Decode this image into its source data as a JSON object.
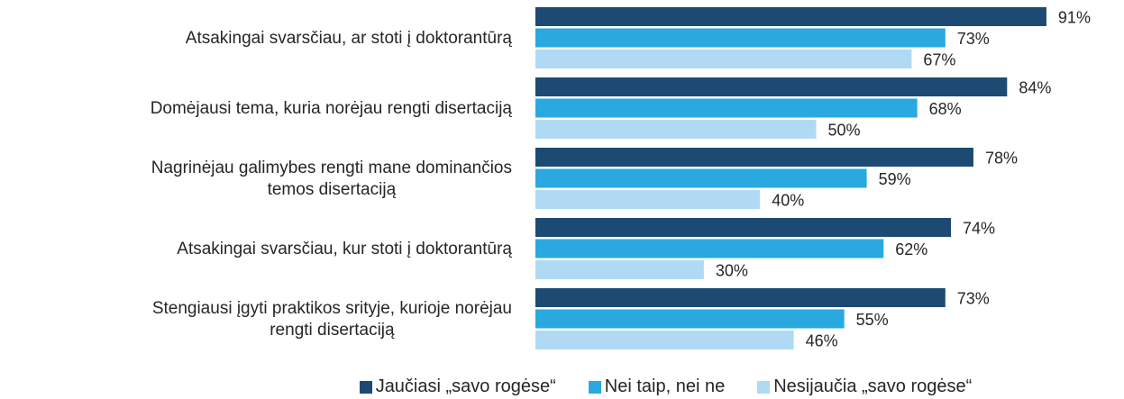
{
  "chart_data": {
    "type": "bar",
    "orientation": "horizontal",
    "categories": [
      "Atsakingai svarsčiau, ar stoti į doktorantūrą",
      "Domėjausi tema, kuria norėjau rengti disertaciją",
      "Nagrinėjau galimybes rengti mane dominančios\ntemos disertaciją",
      "Atsakingai svarsčiau, kur stoti į doktorantūrą",
      "Stengiausi įgyti praktikos srityje, kurioje norėjau\nrengti disertaciją"
    ],
    "series": [
      {
        "name": "Jaučiasi „savo rogėse“",
        "color": "#1d4a72",
        "values": [
          91,
          84,
          78,
          74,
          73
        ],
        "value_labels": [
          "91%",
          "84%",
          "78%",
          "74%",
          "73%"
        ]
      },
      {
        "name": "Nei taip, nei ne",
        "color": "#2aa9e0",
        "values": [
          73,
          68,
          59,
          62,
          55
        ],
        "value_labels": [
          "73%",
          "68%",
          "59%",
          "62%",
          "55%"
        ]
      },
      {
        "name": "Nesijaučia „savo rogėse“",
        "color": "#b0daf3",
        "values": [
          67,
          50,
          40,
          30,
          46
        ],
        "value_labels": [
          "67%",
          "50%",
          "40%",
          "30%",
          "46%"
        ]
      }
    ],
    "xlim": [
      0,
      100
    ],
    "legend": "bottom"
  }
}
